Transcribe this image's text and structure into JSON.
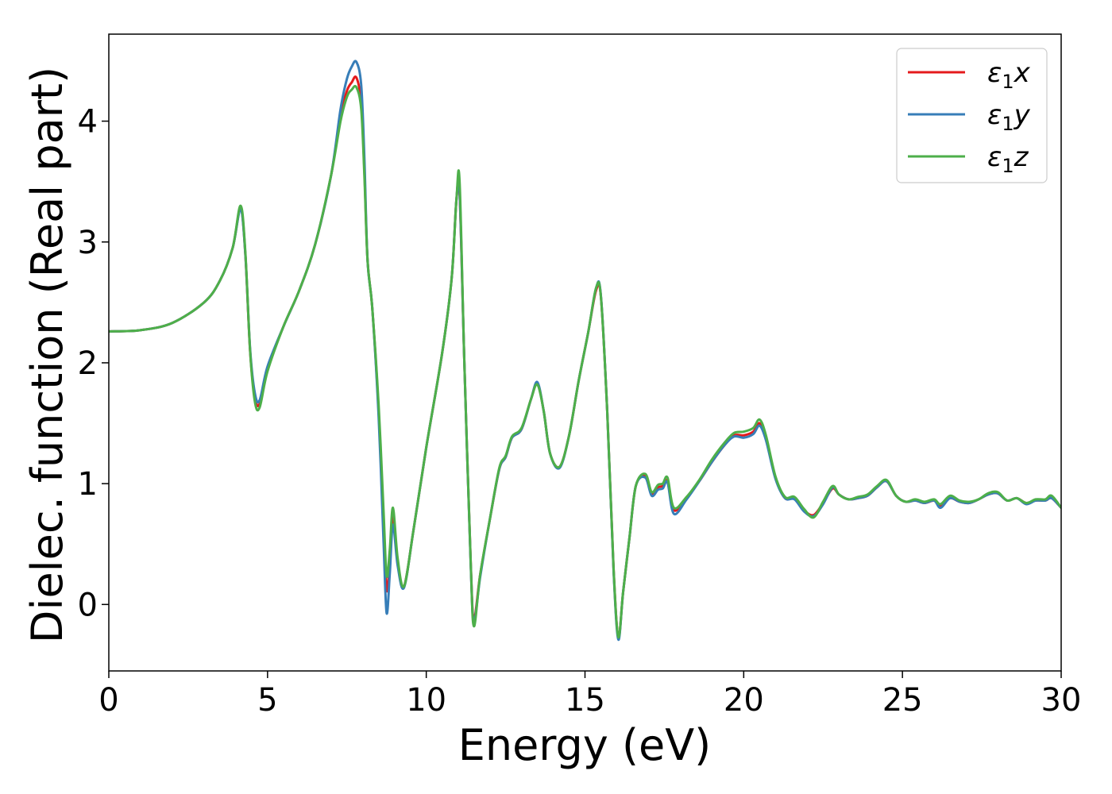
{
  "chart_data": {
    "type": "line",
    "xlabel": "Energy (eV)",
    "ylabel": "Dielec. function (Real part)",
    "xlim": [
      0,
      30
    ],
    "ylim": [
      -0.55,
      4.72
    ],
    "xticks": [
      0,
      5,
      10,
      15,
      20,
      25,
      30
    ],
    "xtick_labels": [
      "0",
      "5",
      "10",
      "15",
      "20",
      "25",
      "30"
    ],
    "yticks": [
      0,
      1,
      2,
      3,
      4
    ],
    "ytick_labels": [
      "0",
      "1",
      "2",
      "3",
      "4"
    ],
    "grid": false,
    "legend_position": "top-right",
    "series": [
      {
        "name": "ε1x",
        "legend_symbol": "ε",
        "legend_sub": "1",
        "legend_suffix": "x",
        "color": "#e41a1c",
        "x": [
          0,
          1,
          2,
          3,
          3.5,
          3.9,
          4.15,
          4.3,
          4.45,
          4.6,
          4.75,
          5.0,
          5.5,
          6.0,
          6.5,
          7.0,
          7.3,
          7.5,
          7.65,
          7.8,
          7.95,
          8.05,
          8.15,
          8.3,
          8.5,
          8.65,
          8.75,
          8.85,
          8.95,
          9.1,
          9.3,
          9.6,
          10.0,
          10.5,
          10.8,
          10.95,
          11.05,
          11.2,
          11.4,
          11.5,
          11.7,
          12.0,
          12.3,
          12.5,
          12.7,
          13.0,
          13.3,
          13.5,
          13.7,
          13.9,
          14.2,
          14.5,
          14.8,
          15.1,
          15.35,
          15.5,
          15.7,
          15.9,
          16.05,
          16.2,
          16.4,
          16.6,
          16.9,
          17.1,
          17.3,
          17.45,
          17.6,
          17.8,
          18.2,
          18.6,
          19.0,
          19.4,
          19.7,
          20.0,
          20.3,
          20.5,
          20.7,
          21.0,
          21.3,
          21.6,
          21.9,
          22.2,
          22.5,
          22.8,
          23.0,
          23.3,
          23.6,
          23.9,
          24.2,
          24.5,
          24.8,
          25.1,
          25.4,
          25.7,
          26.0,
          26.2,
          26.5,
          26.8,
          27.1,
          27.4,
          27.7,
          28.0,
          28.3,
          28.6,
          28.9,
          29.2,
          29.5,
          29.7,
          30.0
        ],
        "y": [
          2.26,
          2.27,
          2.33,
          2.5,
          2.68,
          2.95,
          3.28,
          2.9,
          2.1,
          1.72,
          1.66,
          1.95,
          2.3,
          2.6,
          2.98,
          3.55,
          4.05,
          4.25,
          4.32,
          4.36,
          4.15,
          3.6,
          2.85,
          2.45,
          1.6,
          0.7,
          0.12,
          0.35,
          0.72,
          0.35,
          0.15,
          0.62,
          1.3,
          2.08,
          2.7,
          3.35,
          3.4,
          2.0,
          0.35,
          -0.12,
          0.25,
          0.7,
          1.12,
          1.22,
          1.38,
          1.45,
          1.7,
          1.83,
          1.6,
          1.25,
          1.14,
          1.4,
          1.85,
          2.25,
          2.6,
          2.55,
          1.6,
          0.3,
          -0.27,
          0.1,
          0.55,
          0.98,
          1.06,
          0.92,
          0.97,
          0.98,
          1.02,
          0.78,
          0.88,
          1.02,
          1.18,
          1.32,
          1.4,
          1.4,
          1.43,
          1.5,
          1.38,
          1.05,
          0.88,
          0.88,
          0.78,
          0.74,
          0.84,
          0.96,
          0.91,
          0.87,
          0.88,
          0.9,
          0.97,
          1.02,
          0.9,
          0.85,
          0.86,
          0.84,
          0.86,
          0.82,
          0.88,
          0.85,
          0.84,
          0.87,
          0.91,
          0.92,
          0.86,
          0.88,
          0.84,
          0.86,
          0.86,
          0.88,
          0.8
        ]
      },
      {
        "name": "ε1y",
        "legend_symbol": "ε",
        "legend_sub": "1",
        "legend_suffix": "y",
        "color": "#377eb8",
        "x": [
          0,
          1,
          2,
          3,
          3.5,
          3.9,
          4.15,
          4.3,
          4.45,
          4.6,
          4.75,
          5.0,
          5.5,
          6.0,
          6.5,
          7.0,
          7.3,
          7.5,
          7.65,
          7.8,
          7.95,
          8.05,
          8.15,
          8.3,
          8.5,
          8.65,
          8.75,
          8.85,
          8.95,
          9.1,
          9.3,
          9.6,
          10.0,
          10.5,
          10.8,
          10.95,
          11.05,
          11.2,
          11.4,
          11.5,
          11.7,
          12.0,
          12.3,
          12.5,
          12.7,
          13.0,
          13.3,
          13.5,
          13.7,
          13.9,
          14.2,
          14.5,
          14.8,
          15.1,
          15.35,
          15.5,
          15.7,
          15.9,
          16.05,
          16.2,
          16.4,
          16.6,
          16.9,
          17.1,
          17.3,
          17.45,
          17.6,
          17.8,
          18.2,
          18.6,
          19.0,
          19.4,
          19.7,
          20.0,
          20.3,
          20.5,
          20.7,
          21.0,
          21.3,
          21.6,
          21.9,
          22.2,
          22.5,
          22.8,
          23.0,
          23.3,
          23.6,
          23.9,
          24.2,
          24.5,
          24.8,
          25.1,
          25.4,
          25.7,
          26.0,
          26.2,
          26.5,
          26.8,
          27.1,
          27.4,
          27.7,
          28.0,
          28.3,
          28.6,
          28.9,
          29.2,
          29.5,
          29.7,
          30.0
        ],
        "y": [
          2.26,
          2.27,
          2.33,
          2.5,
          2.68,
          2.95,
          3.27,
          2.9,
          2.12,
          1.75,
          1.69,
          1.97,
          2.3,
          2.6,
          2.98,
          3.55,
          4.1,
          4.35,
          4.45,
          4.49,
          4.3,
          3.7,
          2.85,
          2.45,
          1.55,
          0.55,
          -0.07,
          0.25,
          0.66,
          0.32,
          0.14,
          0.62,
          1.3,
          2.08,
          2.7,
          3.35,
          3.41,
          2.0,
          0.33,
          -0.14,
          0.23,
          0.7,
          1.12,
          1.22,
          1.38,
          1.45,
          1.7,
          1.84,
          1.6,
          1.25,
          1.13,
          1.4,
          1.85,
          2.25,
          2.62,
          2.56,
          1.6,
          0.28,
          -0.29,
          0.1,
          0.55,
          0.98,
          1.05,
          0.9,
          0.95,
          0.96,
          1.01,
          0.75,
          0.87,
          1.02,
          1.18,
          1.32,
          1.39,
          1.38,
          1.41,
          1.48,
          1.36,
          1.04,
          0.88,
          0.87,
          0.77,
          0.73,
          0.83,
          0.97,
          0.91,
          0.87,
          0.88,
          0.9,
          0.97,
          1.02,
          0.9,
          0.85,
          0.86,
          0.84,
          0.86,
          0.8,
          0.88,
          0.85,
          0.84,
          0.87,
          0.91,
          0.92,
          0.86,
          0.88,
          0.83,
          0.86,
          0.86,
          0.88,
          0.8
        ]
      },
      {
        "name": "ε1z",
        "legend_symbol": "ε",
        "legend_sub": "1",
        "legend_suffix": "z",
        "color": "#4daf4a",
        "x": [
          0,
          1,
          2,
          3,
          3.5,
          3.9,
          4.15,
          4.3,
          4.45,
          4.6,
          4.75,
          5.0,
          5.5,
          6.0,
          6.5,
          7.0,
          7.3,
          7.5,
          7.65,
          7.8,
          7.95,
          8.05,
          8.15,
          8.3,
          8.5,
          8.65,
          8.75,
          8.85,
          8.95,
          9.1,
          9.3,
          9.6,
          10.0,
          10.5,
          10.8,
          10.95,
          11.05,
          11.2,
          11.4,
          11.5,
          11.7,
          12.0,
          12.3,
          12.5,
          12.7,
          13.0,
          13.3,
          13.5,
          13.7,
          13.9,
          14.2,
          14.5,
          14.8,
          15.1,
          15.35,
          15.5,
          15.7,
          15.9,
          16.05,
          16.2,
          16.4,
          16.6,
          16.9,
          17.1,
          17.3,
          17.45,
          17.6,
          17.8,
          18.2,
          18.6,
          19.0,
          19.4,
          19.7,
          20.0,
          20.3,
          20.5,
          20.7,
          21.0,
          21.3,
          21.6,
          21.9,
          22.2,
          22.5,
          22.8,
          23.0,
          23.3,
          23.6,
          23.9,
          24.2,
          24.5,
          24.8,
          25.1,
          25.4,
          25.7,
          26.0,
          26.2,
          26.5,
          26.8,
          27.1,
          27.4,
          27.7,
          28.0,
          28.3,
          28.6,
          28.9,
          29.2,
          29.5,
          29.7,
          30.0
        ],
        "y": [
          2.26,
          2.27,
          2.33,
          2.5,
          2.68,
          2.95,
          3.3,
          2.92,
          2.1,
          1.68,
          1.63,
          1.93,
          2.3,
          2.6,
          2.98,
          3.55,
          4.0,
          4.2,
          4.26,
          4.28,
          4.1,
          3.55,
          2.85,
          2.45,
          1.65,
          0.8,
          0.24,
          0.45,
          0.8,
          0.38,
          0.15,
          0.62,
          1.3,
          2.08,
          2.7,
          3.35,
          3.5,
          2.0,
          0.35,
          -0.18,
          0.25,
          0.7,
          1.13,
          1.23,
          1.39,
          1.46,
          1.7,
          1.82,
          1.6,
          1.25,
          1.14,
          1.4,
          1.85,
          2.25,
          2.62,
          2.55,
          1.6,
          0.3,
          -0.27,
          0.1,
          0.55,
          0.98,
          1.08,
          0.93,
          0.99,
          1.0,
          1.05,
          0.8,
          0.89,
          1.03,
          1.2,
          1.34,
          1.42,
          1.43,
          1.46,
          1.53,
          1.4,
          1.06,
          0.89,
          0.89,
          0.79,
          0.72,
          0.85,
          0.98,
          0.91,
          0.87,
          0.89,
          0.91,
          0.98,
          1.03,
          0.9,
          0.85,
          0.87,
          0.85,
          0.87,
          0.83,
          0.9,
          0.86,
          0.85,
          0.87,
          0.92,
          0.93,
          0.86,
          0.88,
          0.84,
          0.87,
          0.87,
          0.9,
          0.8
        ]
      }
    ]
  }
}
